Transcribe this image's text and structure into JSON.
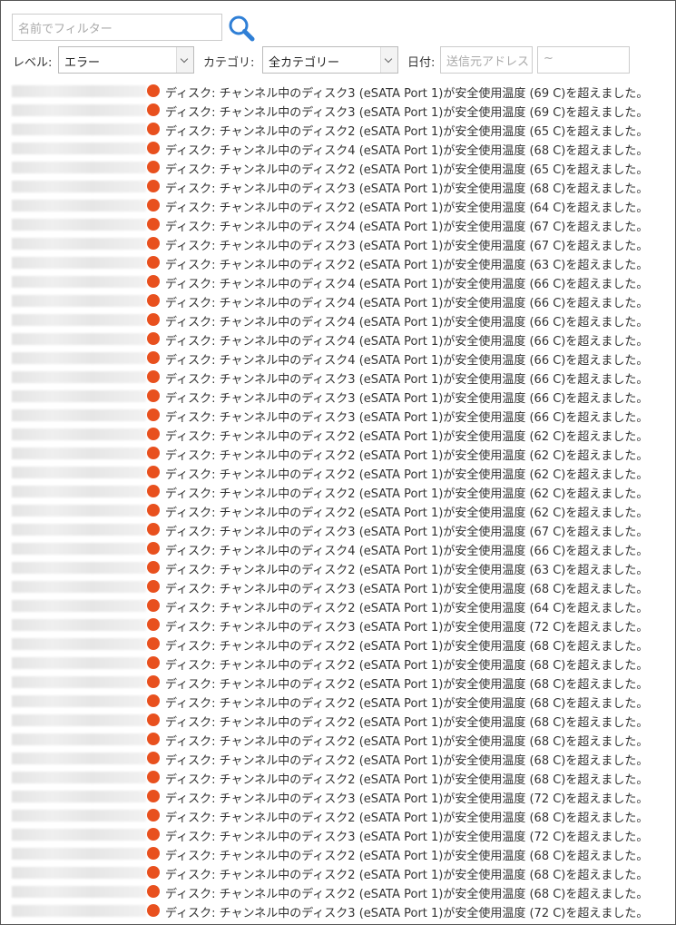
{
  "filter": {
    "name_placeholder": "名前でフィルター",
    "level_label": "レベル:",
    "level_value": "エラー",
    "category_label": "カテゴリ:",
    "category_value": "全カテゴリー",
    "date_label": "日付:",
    "source_placeholder": "送信元アドレス",
    "date_placeholder": "~"
  },
  "rows": [
    "ディスク: チャンネル中のディスク3 (eSATA Port 1)が安全使用温度 (69 C)を超えました。",
    "ディスク: チャンネル中のディスク3 (eSATA Port 1)が安全使用温度 (69 C)を超えました。",
    "ディスク: チャンネル中のディスク2 (eSATA Port 1)が安全使用温度 (65 C)を超えました。",
    "ディスク: チャンネル中のディスク4 (eSATA Port 1)が安全使用温度 (68 C)を超えました。",
    "ディスク: チャンネル中のディスク2 (eSATA Port 1)が安全使用温度 (65 C)を超えました。",
    "ディスク: チャンネル中のディスク3 (eSATA Port 1)が安全使用温度 (68 C)を超えました。",
    "ディスク: チャンネル中のディスク2 (eSATA Port 1)が安全使用温度 (64 C)を超えました。",
    "ディスク: チャンネル中のディスク4 (eSATA Port 1)が安全使用温度 (67 C)を超えました。",
    "ディスク: チャンネル中のディスク3 (eSATA Port 1)が安全使用温度 (67 C)を超えました。",
    "ディスク: チャンネル中のディスク2 (eSATA Port 1)が安全使用温度 (63 C)を超えました。",
    "ディスク: チャンネル中のディスク4 (eSATA Port 1)が安全使用温度 (66 C)を超えました。",
    "ディスク: チャンネル中のディスク4 (eSATA Port 1)が安全使用温度 (66 C)を超えました。",
    "ディスク: チャンネル中のディスク4 (eSATA Port 1)が安全使用温度 (66 C)を超えました。",
    "ディスク: チャンネル中のディスク4 (eSATA Port 1)が安全使用温度 (66 C)を超えました。",
    "ディスク: チャンネル中のディスク4 (eSATA Port 1)が安全使用温度 (66 C)を超えました。",
    "ディスク: チャンネル中のディスク3 (eSATA Port 1)が安全使用温度 (66 C)を超えました。",
    "ディスク: チャンネル中のディスク3 (eSATA Port 1)が安全使用温度 (66 C)を超えました。",
    "ディスク: チャンネル中のディスク3 (eSATA Port 1)が安全使用温度 (66 C)を超えました。",
    "ディスク: チャンネル中のディスク2 (eSATA Port 1)が安全使用温度 (62 C)を超えました。",
    "ディスク: チャンネル中のディスク2 (eSATA Port 1)が安全使用温度 (62 C)を超えました。",
    "ディスク: チャンネル中のディスク2 (eSATA Port 1)が安全使用温度 (62 C)を超えました。",
    "ディスク: チャンネル中のディスク2 (eSATA Port 1)が安全使用温度 (62 C)を超えました。",
    "ディスク: チャンネル中のディスク2 (eSATA Port 1)が安全使用温度 (62 C)を超えました。",
    "ディスク: チャンネル中のディスク3 (eSATA Port 1)が安全使用温度 (67 C)を超えました。",
    "ディスク: チャンネル中のディスク4 (eSATA Port 1)が安全使用温度 (66 C)を超えました。",
    "ディスク: チャンネル中のディスク2 (eSATA Port 1)が安全使用温度 (63 C)を超えました。",
    "ディスク: チャンネル中のディスク3 (eSATA Port 1)が安全使用温度 (68 C)を超えました。",
    "ディスク: チャンネル中のディスク2 (eSATA Port 1)が安全使用温度 (64 C)を超えました。",
    "ディスク: チャンネル中のディスク3 (eSATA Port 1)が安全使用温度 (72 C)を超えました。",
    "ディスク: チャンネル中のディスク2 (eSATA Port 1)が安全使用温度 (68 C)を超えました。",
    "ディスク: チャンネル中のディスク2 (eSATA Port 1)が安全使用温度 (68 C)を超えました。",
    "ディスク: チャンネル中のディスク2 (eSATA Port 1)が安全使用温度 (68 C)を超えました。",
    "ディスク: チャンネル中のディスク2 (eSATA Port 1)が安全使用温度 (68 C)を超えました。",
    "ディスク: チャンネル中のディスク2 (eSATA Port 1)が安全使用温度 (68 C)を超えました。",
    "ディスク: チャンネル中のディスク2 (eSATA Port 1)が安全使用温度 (68 C)を超えました。",
    "ディスク: チャンネル中のディスク2 (eSATA Port 1)が安全使用温度 (68 C)を超えました。",
    "ディスク: チャンネル中のディスク2 (eSATA Port 1)が安全使用温度 (68 C)を超えました。",
    "ディスク: チャンネル中のディスク3 (eSATA Port 1)が安全使用温度 (72 C)を超えました。",
    "ディスク: チャンネル中のディスク2 (eSATA Port 1)が安全使用温度 (68 C)を超えました。",
    "ディスク: チャンネル中のディスク3 (eSATA Port 1)が安全使用温度 (72 C)を超えました。",
    "ディスク: チャンネル中のディスク2 (eSATA Port 1)が安全使用温度 (68 C)を超えました。",
    "ディスク: チャンネル中のディスク2 (eSATA Port 1)が安全使用温度 (68 C)を超えました。",
    "ディスク: チャンネル中のディスク2 (eSATA Port 1)が安全使用温度 (68 C)を超えました。",
    "ディスク: チャンネル中のディスク3 (eSATA Port 1)が安全使用温度 (72 C)を超えました。"
  ]
}
